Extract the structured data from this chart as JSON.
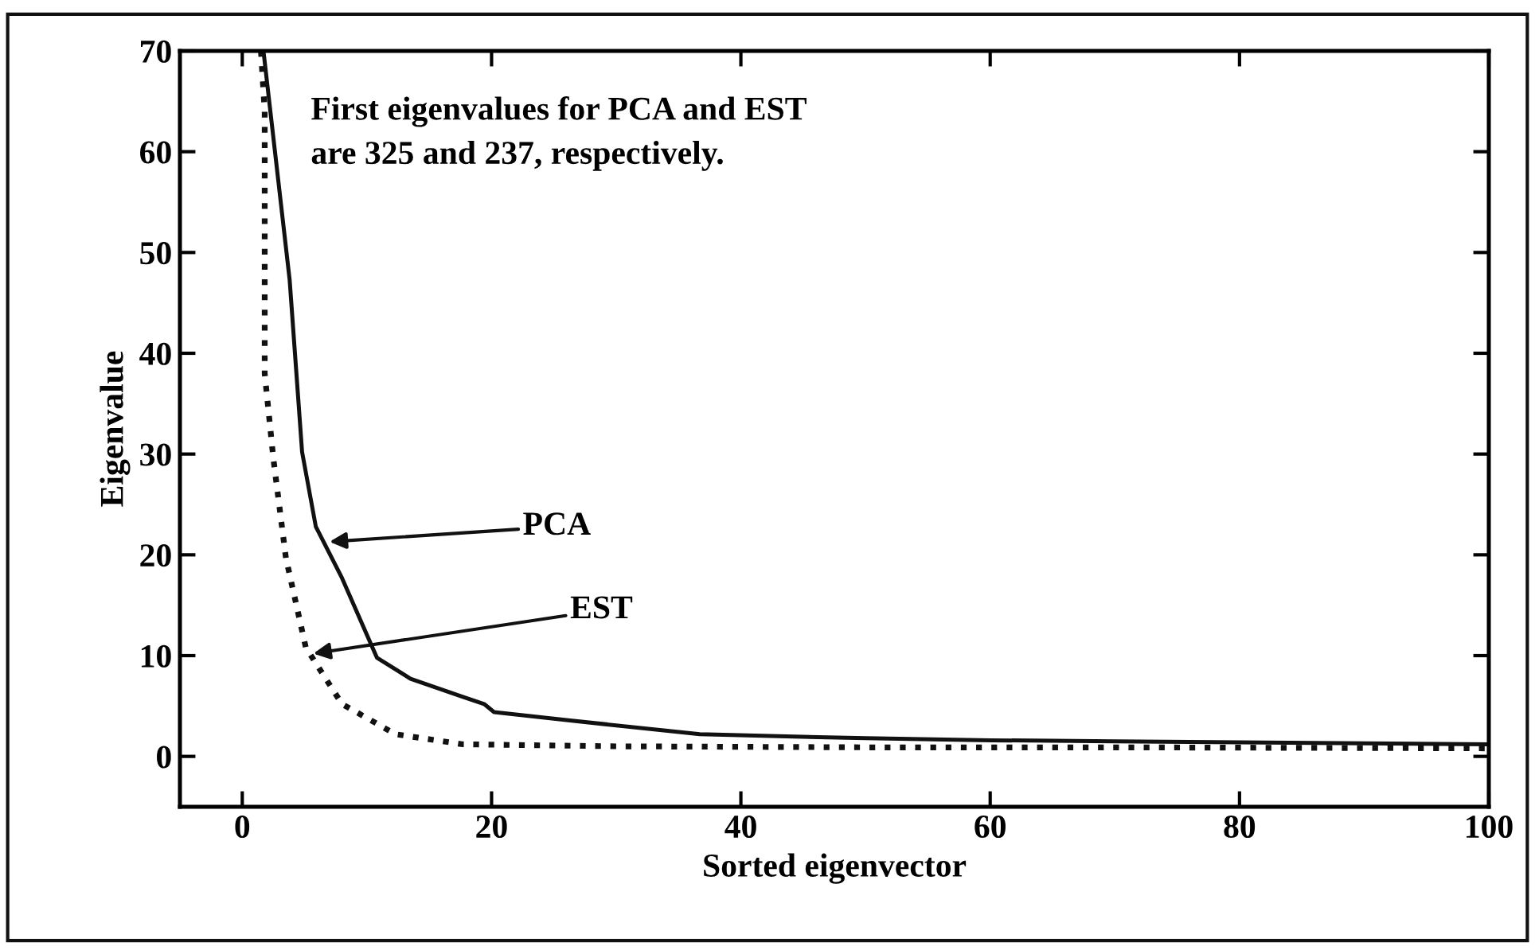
{
  "chart_data": {
    "type": "line",
    "xlabel": "Sorted eigenvector",
    "ylabel": "Eigenvalue",
    "xlim": [
      -5,
      100
    ],
    "ylim": [
      -5,
      70
    ],
    "xticks": [
      0,
      20,
      40,
      60,
      80,
      100
    ],
    "yticks": [
      0,
      10,
      20,
      30,
      40,
      50,
      60,
      70
    ],
    "grid": false,
    "legend": false,
    "marker": "none",
    "series": [
      {
        "color": "#111111",
        "line_style": "solid",
        "x": [
          1.7,
          3.8,
          4.8,
          5.9,
          8.0,
          10.8,
          13.5,
          17.7,
          19.4,
          20.2,
          26,
          36.7,
          43,
          50,
          60,
          70,
          80,
          90,
          100
        ],
        "values": [
          70,
          47.3,
          30.2,
          22.8,
          17.7,
          9.8,
          7.7,
          5.9,
          5.2,
          4.4,
          3.6,
          2.2,
          2.0,
          1.8,
          1.6,
          1.5,
          1.4,
          1.3,
          1.2
        ]
      },
      {
        "color": "#111111",
        "line_style": "dotted",
        "x": [
          1.5,
          1.8,
          1.8,
          2.5,
          3.5,
          5.1,
          8.0,
          12.3,
          17.7,
          30,
          50,
          70,
          100
        ],
        "values": [
          70,
          64,
          38,
          29.5,
          19.7,
          10.8,
          5.2,
          2.2,
          1.2,
          1.0,
          0.9,
          0.9,
          0.8
        ]
      }
    ],
    "annotations": [
      "First eigenvalues for PCA and EST\nare 325 and 237, respectively.",
      {
        "text": "PCA",
        "x": 7,
        "y": 21.3
      },
      {
        "text": "EST",
        "x": 5.7,
        "y": 10.2
      }
    ]
  }
}
